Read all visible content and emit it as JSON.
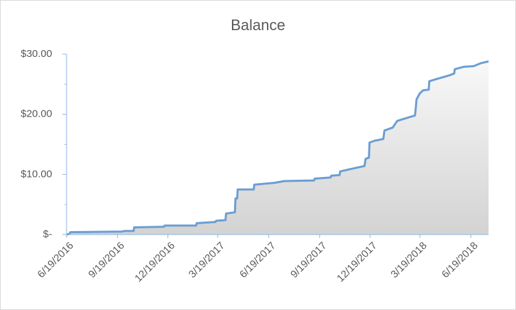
{
  "chart_data": {
    "type": "area",
    "title": "Balance",
    "x": [
      "6/19/2016",
      "6/24/2016",
      "6/26/2016",
      "9/28/2016",
      "10/1/2016",
      "10/18/2016",
      "10/19/2016",
      "12/12/2016",
      "12/13/2016",
      "2/8/2017",
      "2/9/2017",
      "3/15/2017",
      "3/16/2017",
      "4/2/2017",
      "4/3/2017",
      "4/19/2017",
      "4/20/2017",
      "4/23/2017",
      "4/24/2017",
      "5/23/2017",
      "5/24/2017",
      "6/29/2017",
      "7/17/2017",
      "9/9/2017",
      "9/10/2017",
      "10/9/2017",
      "10/10/2017",
      "10/25/2017",
      "10/26/2017",
      "11/14/2017",
      "12/9/2017",
      "12/11/2017",
      "12/17/2017",
      "12/18/2017",
      "12/27/2017",
      "1/12/2018",
      "1/14/2018",
      "1/29/2018",
      "2/6/2018",
      "2/20/2018",
      "3/10/2018",
      "3/11/2018",
      "3/13/2018",
      "3/19/2018",
      "3/25/2018",
      "4/4/2018",
      "4/5/2018",
      "4/23/2018",
      "5/12/2018",
      "5/20/2018",
      "5/21/2018",
      "6/6/2018",
      "6/24/2018",
      "7/7/2018",
      "7/21/2018"
    ],
    "values": [
      0,
      0.1,
      0.4,
      0.5,
      0.6,
      0.6,
      1.2,
      1.3,
      1.5,
      1.5,
      1.9,
      2.1,
      2.3,
      2.4,
      3.5,
      3.7,
      6.0,
      6.0,
      7.5,
      7.5,
      8.3,
      8.6,
      8.9,
      9.0,
      9.3,
      9.5,
      9.8,
      9.9,
      10.5,
      10.9,
      11.4,
      12.6,
      12.8,
      15.3,
      15.6,
      15.9,
      17.3,
      17.8,
      18.9,
      19.3,
      19.8,
      20.5,
      22.5,
      23.5,
      24.0,
      24.1,
      25.5,
      26.0,
      26.5,
      26.8,
      27.5,
      27.9,
      28.0,
      28.5,
      28.8
    ],
    "color": "#6a9ed2",
    "fill_colors": [
      "#f8f8f8",
      "#d3d3d3"
    ],
    "xlim": [
      "6/19/2016",
      "7/21/2018"
    ],
    "xticks": [
      "6/19/2016",
      "9/19/2016",
      "12/19/2016",
      "3/19/2017",
      "6/19/2017",
      "9/19/2017",
      "12/19/2017",
      "3/19/2018",
      "6/19/2018"
    ],
    "ylim": [
      0,
      30
    ],
    "yticks": [
      {
        "value": 0,
        "label": "$-"
      },
      {
        "value": 10,
        "label": "$10.00"
      },
      {
        "value": 20,
        "label": "$20.00"
      },
      {
        "value": 30,
        "label": "$30.00"
      }
    ],
    "yminor_ticks": [
      5,
      15,
      25
    ],
    "grid": false
  }
}
